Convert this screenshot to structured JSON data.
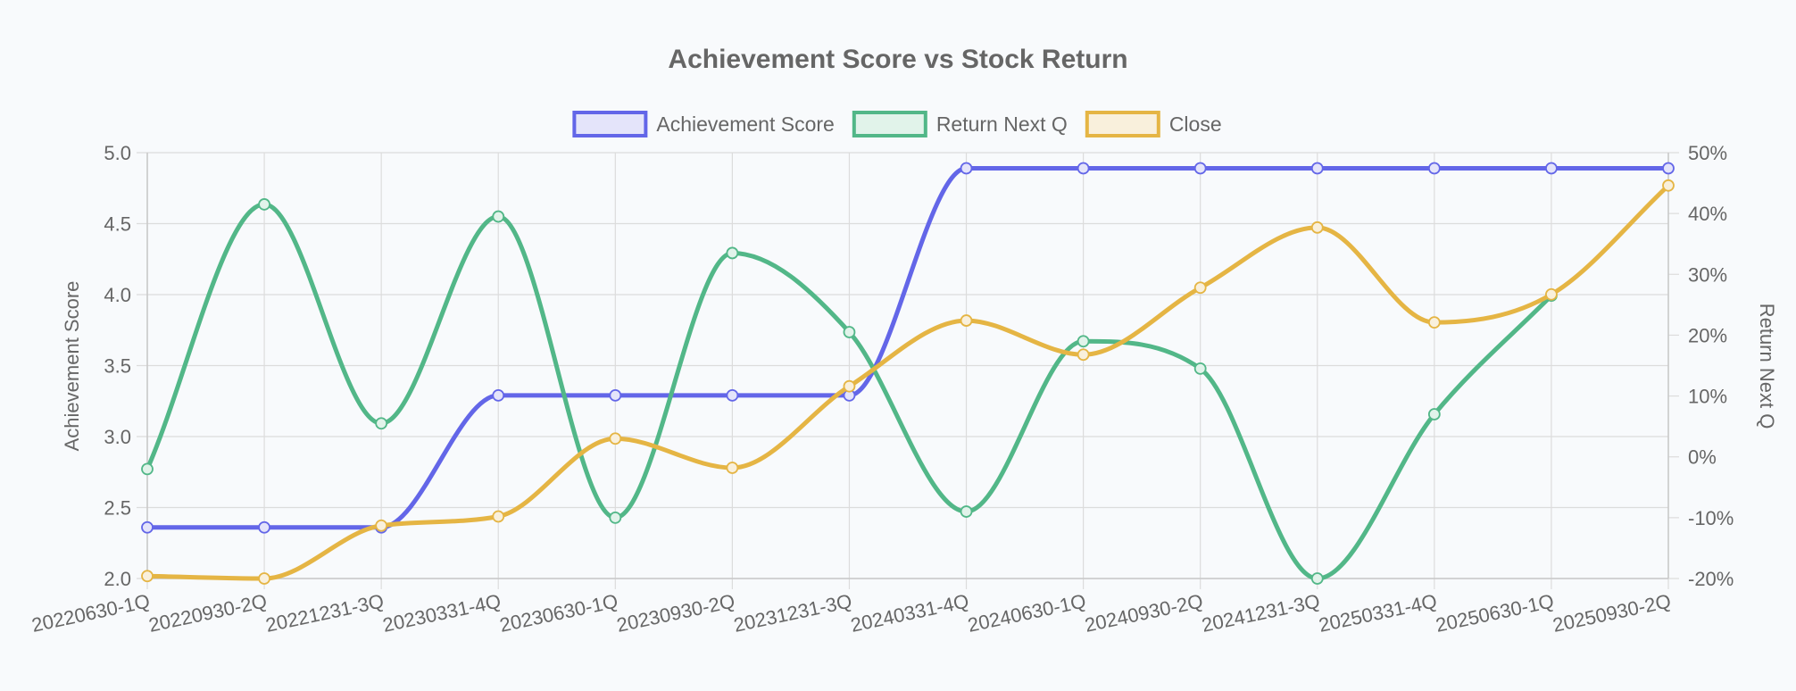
{
  "chart_data": {
    "type": "line",
    "title": "Achievement Score vs Stock Return",
    "categories": [
      "20220630-1Q",
      "20220930-2Q",
      "20221231-3Q",
      "20230331-4Q",
      "20230630-1Q",
      "20230930-2Q",
      "20231231-3Q",
      "20240331-4Q",
      "20240630-1Q",
      "20240930-2Q",
      "20241231-3Q",
      "20250331-4Q",
      "20250630-1Q",
      "20250930-2Q"
    ],
    "series": [
      {
        "name": "Achievement Score",
        "axis": "left",
        "color": "#6366e8",
        "fill": "#e4e4fa",
        "values": [
          2.36,
          2.36,
          2.36,
          3.29,
          3.29,
          3.29,
          3.29,
          4.89,
          4.89,
          4.89,
          4.89,
          4.89,
          4.89,
          4.89
        ]
      },
      {
        "name": "Return Next Q",
        "axis": "right",
        "color": "#52b788",
        "fill": "#e1f3ea",
        "values": [
          -2,
          41.5,
          5.5,
          39.5,
          -10,
          33.5,
          20.5,
          -9,
          19,
          14.5,
          -20,
          7,
          26.5,
          null
        ]
      },
      {
        "name": "Close",
        "axis": "right",
        "color": "#e5b544",
        "fill": "#f9f0dc",
        "values": [
          -19.6,
          -20,
          -11.3,
          -9.8,
          3,
          -1.8,
          11.6,
          22.4,
          16.8,
          27.8,
          37.7,
          22.1,
          26.7,
          44.6
        ]
      }
    ],
    "y_left": {
      "label": "Achievement Score",
      "min": 2.0,
      "max": 5.0,
      "ticks": [
        "2.0",
        "2.5",
        "3.0",
        "3.5",
        "4.0",
        "4.5",
        "5.0"
      ]
    },
    "y_right": {
      "label": "Return Next Q",
      "min": -20,
      "max": 50,
      "ticks": [
        "-20%",
        "-10%",
        "0%",
        "10%",
        "20%",
        "30%",
        "40%",
        "50%"
      ]
    },
    "grid": true,
    "legend_position": "top-center"
  }
}
